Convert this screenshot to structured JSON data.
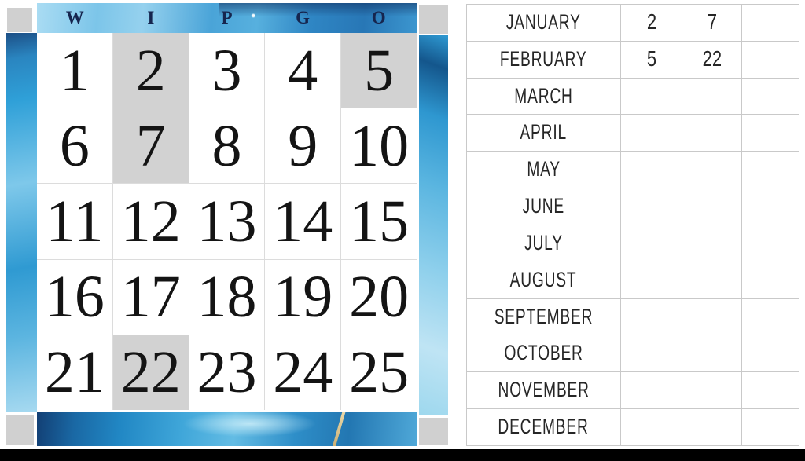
{
  "card": {
    "title": "WIPGO",
    "letters": [
      "W",
      "I",
      "P",
      "G",
      "O"
    ],
    "numbers": [
      "1",
      "2",
      "3",
      "4",
      "5",
      "6",
      "7",
      "8",
      "9",
      "10",
      "11",
      "12",
      "13",
      "14",
      "15",
      "16",
      "17",
      "18",
      "19",
      "20",
      "21",
      "22",
      "23",
      "24",
      "25"
    ],
    "marked_numbers": [
      2,
      5,
      7,
      22
    ],
    "colors": {
      "marked_cell": "#d2d2d2",
      "corner_square": "#d0d0d0",
      "grid_line": "#dcdcdc",
      "number_ink": "#141414",
      "letter_ink": "#16254e",
      "watercolor_blue": "#2f9ad2",
      "watercolor_navy": "#1c4f86",
      "watercolor_light": "#a6d9f0",
      "gold_vein": "#c9ab6e"
    }
  },
  "tracker": {
    "rows": [
      {
        "month": "JANUARY",
        "values": [
          "2",
          "7",
          ""
        ]
      },
      {
        "month": "FEBRUARY",
        "values": [
          "5",
          "22",
          ""
        ]
      },
      {
        "month": "MARCH",
        "values": [
          "",
          "",
          ""
        ]
      },
      {
        "month": "APRIL",
        "values": [
          "",
          "",
          ""
        ]
      },
      {
        "month": "MAY",
        "values": [
          "",
          "",
          ""
        ]
      },
      {
        "month": "JUNE",
        "values": [
          "",
          "",
          ""
        ]
      },
      {
        "month": "JULY",
        "values": [
          "",
          "",
          ""
        ]
      },
      {
        "month": "AUGUST",
        "values": [
          "",
          "",
          ""
        ]
      },
      {
        "month": "SEPTEMBER",
        "values": [
          "",
          "",
          ""
        ]
      },
      {
        "month": "OCTOBER",
        "values": [
          "",
          "",
          ""
        ]
      },
      {
        "month": "NOVEMBER",
        "values": [
          "",
          "",
          ""
        ]
      },
      {
        "month": "DECEMBER",
        "values": [
          "",
          "",
          ""
        ]
      }
    ],
    "line_color": "#c9c9c9",
    "text_ink": "#262626"
  },
  "letterbox": {
    "color": "#000000"
  }
}
